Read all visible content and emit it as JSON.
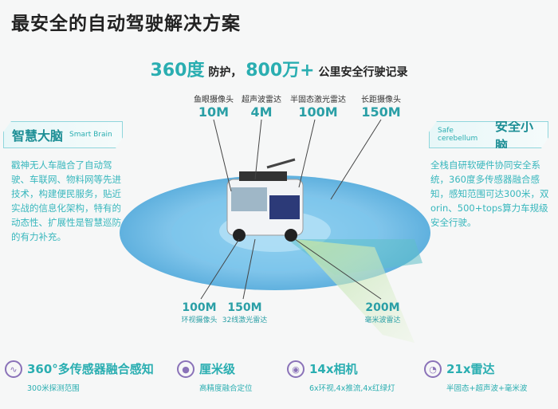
{
  "title": "最安全的自动驾驶解决方案",
  "headline": {
    "num1": "360度",
    "txt1": " 防护，",
    "num2": "800万+",
    "txt2": " 公里安全行驶记录"
  },
  "top_sensors": [
    {
      "label": "鱼眼摄像头",
      "value": "10M"
    },
    {
      "label": "超声波雷达",
      "value": "4M"
    },
    {
      "label": "半固态激光雷达",
      "value": "100M"
    },
    {
      "label": "长距摄像头",
      "value": "150M"
    }
  ],
  "bottom_sensors": [
    {
      "label": "环视摄像头",
      "value": "100M"
    },
    {
      "label": "32线激光雷达",
      "value": "150M"
    },
    {
      "label": "毫米波雷达",
      "value": "200M"
    }
  ],
  "left_panel": {
    "title": "智慧大脑",
    "subtitle": "Smart Brain",
    "text": "戳神无人车融合了自动驾驶、车联网、物料网等先进技术，构建便民服务，贴近实战的信息化架构，特有的动态性、扩展性是智慧巡防的有力补充。"
  },
  "right_panel": {
    "title": "安全小脑",
    "subtitle": "Safe cerebellum",
    "text": "全栈自研软硬件协同安全系统，360度多传感器融合感知，感知范围可达300米，双orin、500+tops算力车规级安全行驶。"
  },
  "features": [
    {
      "icon": "waveform-icon",
      "title": "360°多传感器融合感知",
      "sub": "300米探测范围"
    },
    {
      "icon": "target-icon",
      "title": "厘米级",
      "sub": "高精度融合定位"
    },
    {
      "icon": "camera-icon",
      "title": "14x相机",
      "sub": "6x环视,4x推流,4x红绿灯"
    },
    {
      "icon": "radar-icon",
      "title": "21x雷达",
      "sub": "半固态+超声波+毫米波"
    }
  ],
  "colors": {
    "accent": "#2aaeb1",
    "icon": "#8a72b8",
    "disc": "#3aa0d8"
  }
}
